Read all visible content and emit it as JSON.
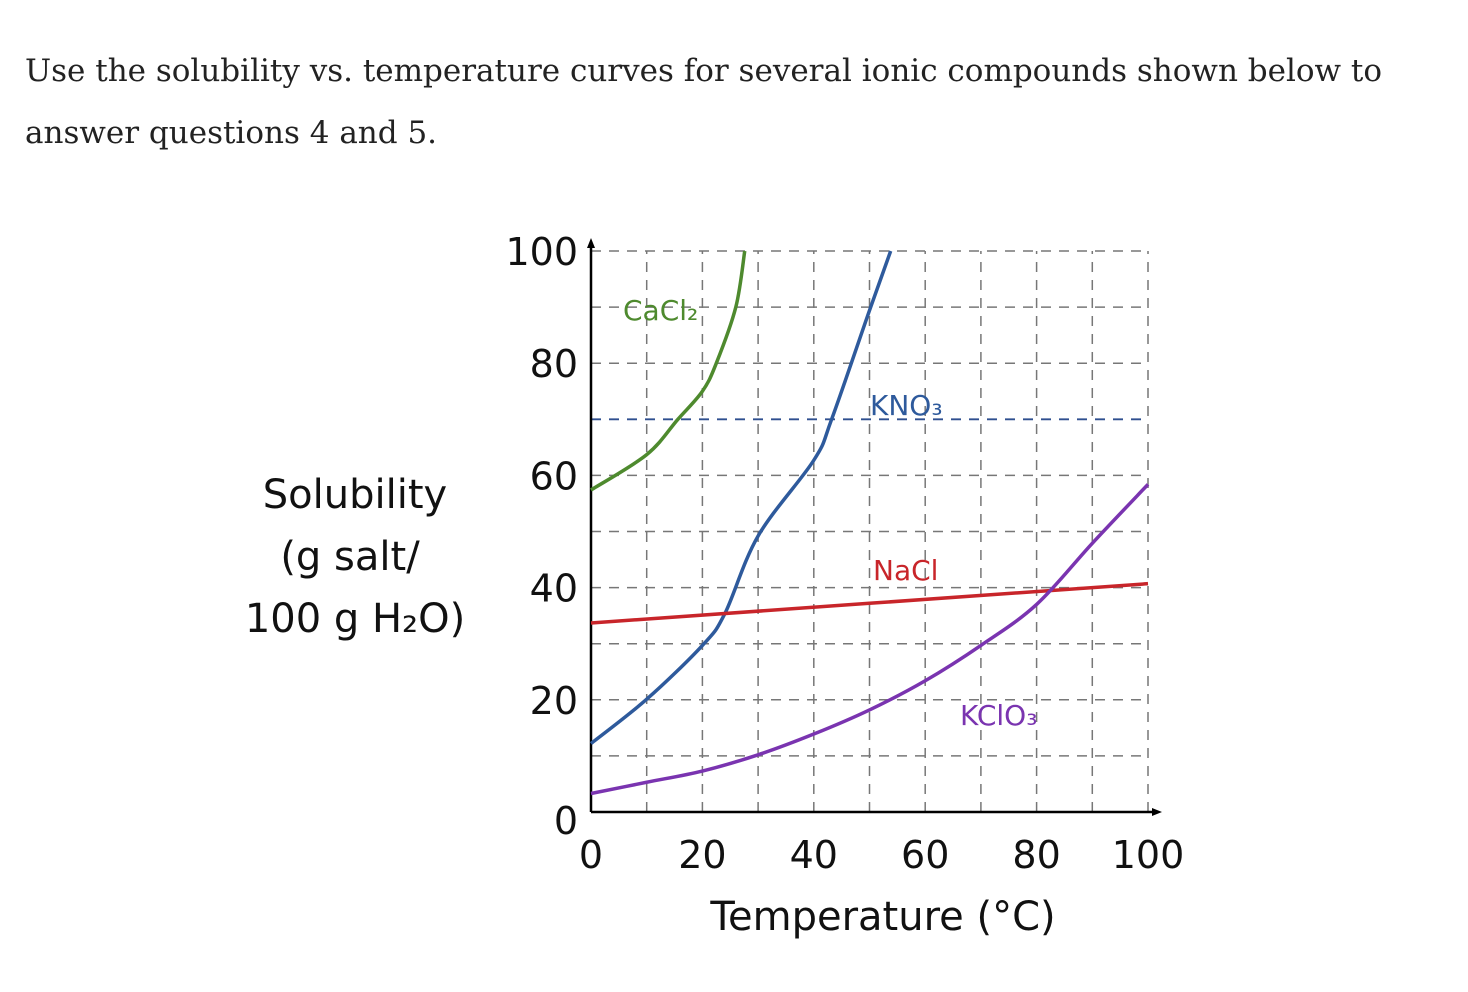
{
  "intro_text": "Use the solubility vs. temperature curves for several ionic compounds shown below to answer questions 4 and 5.",
  "chart_data": {
    "type": "line",
    "title": "",
    "xlabel": "Temperature (°C)",
    "ylabel_lines": [
      "Solubility",
      "(g salt/",
      "100 g H₂O)"
    ],
    "xlim": [
      0,
      100
    ],
    "ylim": [
      0,
      100
    ],
    "x_ticks": [
      "0",
      "20",
      "40",
      "60",
      "80",
      "100"
    ],
    "y_ticks": [
      "0",
      "20",
      "40",
      "60",
      "80",
      "100"
    ],
    "grid": "dashed, every 10 units",
    "legend": "inline labels",
    "reference_line": {
      "y": 70,
      "color": "#2f4f8f",
      "style": "dashed"
    },
    "series": [
      {
        "name": "CaCl₂",
        "color": "#4e8a2e",
        "x": [
          0,
          10,
          15.6,
          20,
          22.5,
          26,
          27.6
        ],
        "y": [
          57.4,
          63.7,
          70,
          75,
          80,
          90,
          100
        ]
      },
      {
        "name": "KNO₃",
        "color": "#2e5a9c",
        "x": [
          0,
          10,
          20,
          24,
          30,
          40,
          43.2,
          50,
          53.8
        ],
        "y": [
          12.2,
          20.1,
          29.7,
          35.3,
          49.2,
          62.7,
          70,
          89.4,
          100
        ]
      },
      {
        "name": "NaCl",
        "color": "#c8252a",
        "x": [
          0,
          100
        ],
        "y": [
          33.7,
          40.7
        ]
      },
      {
        "name": "KClO₃",
        "color": "#7a34b0",
        "x": [
          0,
          10,
          20,
          30,
          40,
          50,
          60,
          70,
          80,
          90,
          100
        ],
        "y": [
          3.3,
          5.3,
          7.3,
          10.2,
          13.9,
          18.2,
          23.4,
          29.7,
          37,
          47.9,
          58.4
        ]
      }
    ]
  }
}
